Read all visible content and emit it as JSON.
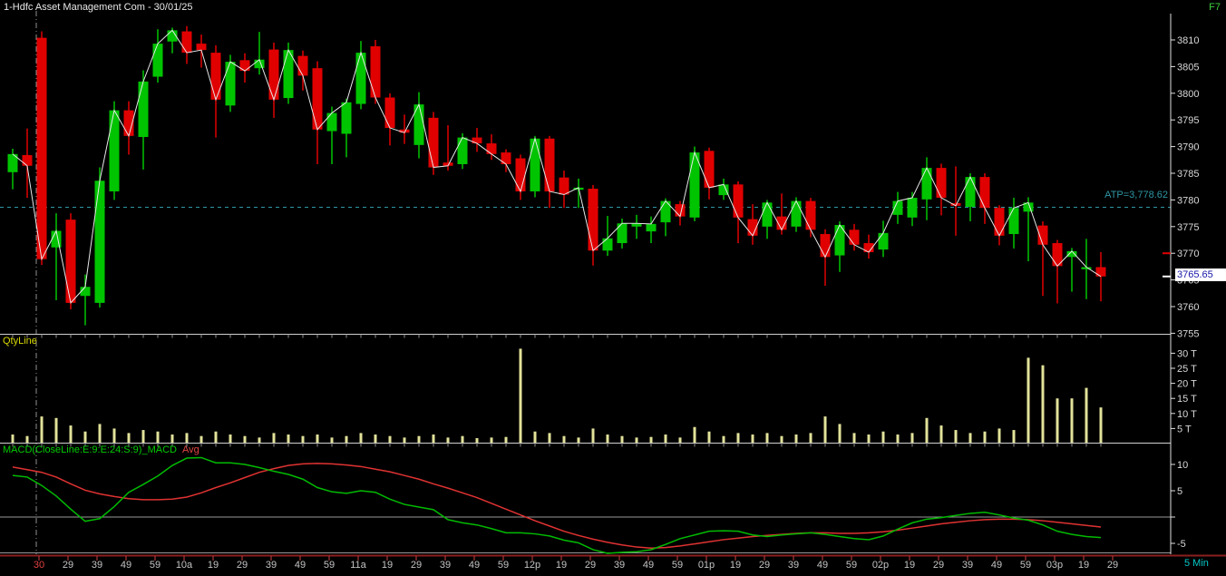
{
  "header": {
    "title": "1-Hdfc Asset Management Com - 30/01/25",
    "hotkey": "F7"
  },
  "footer": {
    "interval": "5 Min"
  },
  "price_pane": {
    "atp_label": "ATP=3,778.62",
    "atp_value": 3778.62,
    "last_price": "3765.65",
    "last_price_value": 3765.65,
    "red_marker_price": 3770.0,
    "axis_ticks": [
      3810,
      3805,
      3800,
      3795,
      3790,
      3785,
      3780,
      3775,
      3770,
      3765,
      3760,
      3755
    ]
  },
  "volume_pane": {
    "label": "QtyLine",
    "axis_ticks": [
      [
        30,
        "30 T"
      ],
      [
        25,
        "25 T"
      ],
      [
        20,
        "20 T"
      ],
      [
        15,
        "15 T"
      ],
      [
        10,
        "10 T"
      ],
      [
        5,
        "5 T"
      ]
    ]
  },
  "macd_pane": {
    "label": "MACD(CloseLine:E:9:E:24:S:9)_MACD",
    "avg_label": "Avg",
    "axis_ticks": [
      [
        10,
        "10"
      ],
      [
        5,
        "5"
      ],
      [
        0,
        ""
      ],
      [
        -5,
        "-5"
      ]
    ]
  },
  "time_axis": {
    "labels": [
      "30",
      "29",
      "39",
      "49",
      "59",
      "10a",
      "19",
      "29",
      "39",
      "49",
      "59",
      "11a",
      "19",
      "29",
      "39",
      "49",
      "59",
      "12p",
      "19",
      "29",
      "39",
      "49",
      "59",
      "01p",
      "19",
      "29",
      "39",
      "49",
      "59",
      "02p",
      "19",
      "29",
      "39",
      "49",
      "59",
      "03p",
      "19",
      "29"
    ],
    "day_label_index": 0
  },
  "colors": {
    "background": "#000000",
    "bullish": "#00c400",
    "bearish": "#e10000",
    "close_line": "#e8e8e8",
    "atp": "#2f97a5",
    "volume_bar": "#e2e29a",
    "volume_label": "#d8d800",
    "macd_line": "#00bb00",
    "macd_avg": "#e03232",
    "axis_text": "#d8d8d8",
    "time_text": "#c4c4c4",
    "day_label": "#e04040",
    "axis_line": "#e0e0e0",
    "separator": "#d0d0d0",
    "session_line": "#909090",
    "zero_line": "#9a9a9a",
    "time_axis_line": "#8b1f1f",
    "time_tick": "#cc4444",
    "interval_text": "#00c8c8",
    "last_price_text": "#1717a8",
    "hotkey": "#3fce3f"
  },
  "chart_data": [
    {
      "type": "candlestick",
      "title": "1-Hdfc Asset Management Com - 30/01/25",
      "interval": "5 Min",
      "ylim": [
        3755,
        3812.5
      ],
      "yticks": [
        3810,
        3805,
        3800,
        3795,
        3790,
        3785,
        3780,
        3775,
        3770,
        3765,
        3760,
        3755
      ],
      "atp_line": 3778.62,
      "ohlc": [
        [
          3785.2,
          3789.6,
          3782.0,
          3788.6
        ],
        [
          3788.4,
          3793.4,
          3780.4,
          3786.4
        ],
        [
          3810.4,
          3811.6,
          3767.8,
          3768.9
        ],
        [
          3771.1,
          3777.5,
          3761.2,
          3774.2
        ],
        [
          3776.3,
          3777.5,
          3759.5,
          3760.7
        ],
        [
          3762.0,
          3766.0,
          3756.5,
          3763.7
        ],
        [
          3760.7,
          3786.1,
          3759.8,
          3783.6
        ],
        [
          3781.6,
          3798.5,
          3780.0,
          3796.8
        ],
        [
          3796.8,
          3798.5,
          3788.5,
          3792.0
        ],
        [
          3791.8,
          3804.3,
          3785.7,
          3802.2
        ],
        [
          3803.1,
          3812.0,
          3802.0,
          3809.3
        ],
        [
          3809.7,
          3812.3,
          3807.5,
          3811.8
        ],
        [
          3811.6,
          3812.6,
          3805.5,
          3807.6
        ],
        [
          3809.3,
          3811.0,
          3804.8,
          3808.1
        ],
        [
          3807.6,
          3809.0,
          3791.7,
          3798.8
        ],
        [
          3797.7,
          3807.2,
          3796.5,
          3805.9
        ],
        [
          3806.2,
          3807.5,
          3802.0,
          3804.2
        ],
        [
          3804.7,
          3811.5,
          3803.5,
          3806.3
        ],
        [
          3808.2,
          3809.5,
          3795.4,
          3798.8
        ],
        [
          3799.1,
          3809.5,
          3798.0,
          3808.1
        ],
        [
          3807.0,
          3808.0,
          3800.5,
          3803.3
        ],
        [
          3804.7,
          3806.0,
          3786.7,
          3793.2
        ],
        [
          3792.9,
          3797.5,
          3786.7,
          3796.3
        ],
        [
          3792.4,
          3799.0,
          3788.0,
          3798.3
        ],
        [
          3798.0,
          3809.8,
          3797.0,
          3807.6
        ],
        [
          3808.8,
          3810.0,
          3798.0,
          3799.2
        ],
        [
          3799.2,
          3800.0,
          3790.2,
          3793.5
        ],
        [
          3793.2,
          3796.0,
          3790.5,
          3792.6
        ],
        [
          3790.3,
          3800.2,
          3787.8,
          3797.9
        ],
        [
          3795.4,
          3796.5,
          3784.7,
          3786.1
        ],
        [
          3787.0,
          3794.0,
          3785.5,
          3786.4
        ],
        [
          3786.7,
          3792.5,
          3785.8,
          3791.7
        ],
        [
          3791.7,
          3793.5,
          3789.0,
          3790.6
        ],
        [
          3790.6,
          3792.3,
          3787.5,
          3788.6
        ],
        [
          3788.9,
          3789.5,
          3785.2,
          3786.7
        ],
        [
          3787.8,
          3788.5,
          3780.0,
          3781.6
        ],
        [
          3781.6,
          3792.0,
          3780.5,
          3791.5
        ],
        [
          3791.5,
          3792.0,
          3778.5,
          3781.6
        ],
        [
          3784.2,
          3785.5,
          3778.5,
          3781.0
        ],
        [
          3781.9,
          3784.0,
          3778.5,
          3782.3
        ],
        [
          3782.1,
          3782.8,
          3767.7,
          3770.5
        ],
        [
          3770.5,
          3777.0,
          3769.5,
          3772.8
        ],
        [
          3771.9,
          3776.5,
          3770.9,
          3775.6
        ],
        [
          3775.0,
          3777.2,
          3772.7,
          3775.6
        ],
        [
          3774.1,
          3776.9,
          3771.9,
          3775.5
        ],
        [
          3775.8,
          3780.3,
          3773.2,
          3779.8
        ],
        [
          3779.2,
          3779.8,
          3775.2,
          3776.9
        ],
        [
          3776.7,
          3790.0,
          3776.0,
          3788.9
        ],
        [
          3789.2,
          3789.8,
          3780.1,
          3782.3
        ],
        [
          3780.9,
          3784.0,
          3780.0,
          3782.9
        ],
        [
          3782.9,
          3783.5,
          3771.9,
          3776.7
        ],
        [
          3776.4,
          3779.2,
          3771.6,
          3773.3
        ],
        [
          3775.0,
          3780.0,
          3772.7,
          3779.5
        ],
        [
          3776.9,
          3781.2,
          3773.5,
          3774.4
        ],
        [
          3775.0,
          3780.5,
          3774.0,
          3779.8
        ],
        [
          3779.8,
          3780.4,
          3773.0,
          3774.4
        ],
        [
          3773.6,
          3774.5,
          3763.9,
          3769.3
        ],
        [
          3769.6,
          3776.0,
          3766.5,
          3775.3
        ],
        [
          3774.4,
          3775.5,
          3770.5,
          3771.6
        ],
        [
          3771.9,
          3773.5,
          3769.0,
          3770.2
        ],
        [
          3770.7,
          3776.1,
          3769.3,
          3773.8
        ],
        [
          3777.2,
          3781.5,
          3775.5,
          3779.8
        ],
        [
          3776.7,
          3781.5,
          3775.1,
          3780.4
        ],
        [
          3780.1,
          3788.0,
          3776.2,
          3786.0
        ],
        [
          3786.0,
          3786.8,
          3777.1,
          3780.4
        ],
        [
          3779.4,
          3786.3,
          3773.3,
          3778.9
        ],
        [
          3778.7,
          3785.0,
          3776.0,
          3784.3
        ],
        [
          3784.3,
          3785.0,
          3775.5,
          3778.5
        ],
        [
          3778.5,
          3779.0,
          3771.5,
          3773.3
        ],
        [
          3773.6,
          3780.4,
          3770.9,
          3778.5
        ],
        [
          3777.8,
          3780.5,
          3768.5,
          3779.5
        ],
        [
          3775.2,
          3776.0,
          3762.0,
          3771.6
        ],
        [
          3771.9,
          3772.5,
          3760.6,
          3767.6
        ],
        [
          3769.3,
          3771.0,
          3762.8,
          3770.4
        ],
        [
          3767.0,
          3772.7,
          3761.4,
          3767.4
        ],
        [
          3767.4,
          3770.2,
          3761.0,
          3765.65
        ]
      ]
    },
    {
      "type": "bar",
      "name": "QtyLine",
      "unit": "T",
      "ylim": [
        0,
        32
      ],
      "yticks": [
        30,
        25,
        20,
        15,
        10,
        5
      ],
      "values": [
        3,
        2.5,
        9,
        8.5,
        6,
        4,
        6.5,
        5,
        3.5,
        4.5,
        4,
        3,
        3.5,
        2.5,
        4,
        3,
        2.5,
        2,
        3.5,
        3,
        2.5,
        3,
        2,
        2.5,
        3.5,
        3,
        2.5,
        2,
        2.5,
        3,
        2,
        2.5,
        1.8,
        2,
        2.2,
        31.5,
        4,
        3.5,
        2.5,
        2,
        5,
        3,
        2.5,
        2,
        2.2,
        3,
        2,
        5.5,
        4,
        2.5,
        3.5,
        3,
        3.5,
        2.5,
        3,
        3.5,
        9,
        6.5,
        3.5,
        3,
        4,
        3,
        3.5,
        8.5,
        6,
        4.5,
        3.5,
        4,
        5,
        4.5,
        28.5,
        26,
        15,
        15,
        18.5,
        12
      ]
    },
    {
      "type": "line",
      "name": "MACD",
      "ylim": [
        -7.5,
        12.5
      ],
      "yticks": [
        10,
        5,
        0,
        -5
      ],
      "series": [
        {
          "name": "MACD",
          "values": [
            7.9,
            7.6,
            6.0,
            4.0,
            1.5,
            -0.8,
            -0.3,
            2.0,
            4.7,
            6.2,
            7.8,
            9.8,
            11.2,
            11.3,
            10.3,
            10.3,
            10.0,
            9.4,
            8.7,
            8.1,
            7.2,
            5.6,
            4.8,
            4.5,
            5.0,
            4.7,
            3.4,
            2.4,
            1.9,
            1.4,
            -0.5,
            -1.1,
            -1.5,
            -2.2,
            -3.0,
            -3.0,
            -3.2,
            -3.6,
            -4.4,
            -4.9,
            -6.2,
            -6.9,
            -6.7,
            -6.6,
            -6.2,
            -5.2,
            -4.1,
            -3.4,
            -2.7,
            -2.6,
            -2.7,
            -3.4,
            -3.7,
            -3.4,
            -3.2,
            -3.0,
            -3.3,
            -3.7,
            -4.1,
            -4.3,
            -3.6,
            -2.3,
            -1.1,
            -0.4,
            -0.1,
            0.3,
            0.7,
            0.9,
            0.4,
            -0.2,
            -0.6,
            -1.5,
            -2.7,
            -3.3,
            -3.7,
            -3.9
          ]
        },
        {
          "name": "Avg",
          "values": [
            9.5,
            9.0,
            8.5,
            7.6,
            6.3,
            5.1,
            4.4,
            3.9,
            3.5,
            3.3,
            3.3,
            3.4,
            3.8,
            4.6,
            5.6,
            6.5,
            7.5,
            8.5,
            9.2,
            9.8,
            10.1,
            10.2,
            10.1,
            9.9,
            9.6,
            9.1,
            8.6,
            7.9,
            7.2,
            6.3,
            5.5,
            4.6,
            3.7,
            2.6,
            1.5,
            0.4,
            -0.7,
            -1.7,
            -2.7,
            -3.5,
            -4.2,
            -4.8,
            -5.3,
            -5.7,
            -5.9,
            -5.8,
            -5.5,
            -5.1,
            -4.7,
            -4.3,
            -4.0,
            -3.7,
            -3.5,
            -3.3,
            -3.1,
            -3.0,
            -3.0,
            -3.1,
            -3.1,
            -3.0,
            -2.8,
            -2.5,
            -2.1,
            -1.7,
            -1.3,
            -1.0,
            -0.7,
            -0.5,
            -0.4,
            -0.4,
            -0.5,
            -0.7,
            -1.0,
            -1.3,
            -1.6,
            -1.9
          ]
        }
      ]
    }
  ]
}
